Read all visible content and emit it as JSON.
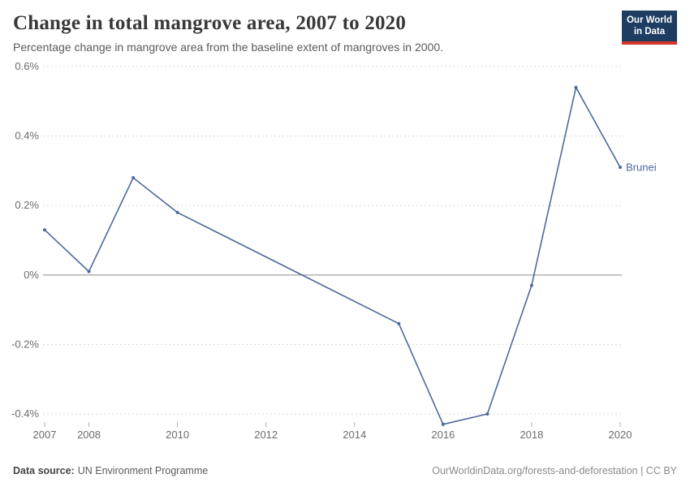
{
  "header": {
    "title": "Change in total mangrove area, 2007 to 2020",
    "subtitle": "Percentage change in mangrove area from the baseline extent of mangroves in 2000.",
    "logo": {
      "line1": "Our World",
      "line2": "in Data",
      "bg_color": "#1D3D63",
      "accent_color": "#D7342C"
    }
  },
  "chart_data": {
    "type": "line",
    "title": "Change in total mangrove area, 2007 to 2020",
    "xlabel": "",
    "ylabel": "",
    "x": [
      2007,
      2008,
      2009,
      2010,
      2015,
      2016,
      2017,
      2018,
      2019,
      2020
    ],
    "series": [
      {
        "name": "Brunei",
        "color": "#4C6A9C",
        "values": [
          0.13,
          0.01,
          0.28,
          0.18,
          -0.14,
          -0.43,
          -0.4,
          -0.03,
          0.54,
          0.31
        ],
        "note": "no data points between 2010 and 2015; line interpolates"
      }
    ],
    "axes": {
      "x_min": 2007,
      "x_max": 2020,
      "y_min": -0.4,
      "y_max": 0.6,
      "x_tick_labels": [
        "2007",
        "2008",
        "2010",
        "2012",
        "2014",
        "2016",
        "2018",
        "2020"
      ],
      "x_tick_values": [
        2007,
        2008,
        2010,
        2012,
        2014,
        2016,
        2018,
        2020
      ],
      "y_ticks": [
        {
          "value": 0.6,
          "label": "0.6%"
        },
        {
          "value": 0.4,
          "label": "0.4%"
        },
        {
          "value": 0.2,
          "label": "0.2%"
        },
        {
          "value": 0,
          "label": "0%"
        },
        {
          "value": -0.2,
          "label": "-0.2%"
        },
        {
          "value": -0.4,
          "label": "-0.4%"
        }
      ]
    },
    "grid": "horizontal dashed, solid line at zero",
    "legend_position": "end-of-line label",
    "end_label": "Brunei",
    "colors": {
      "grid": "#DADADA",
      "zero_line": "#A9A9A9",
      "axis_text": "#6b6b6b",
      "tick_mark": "#B0B0B0"
    }
  },
  "footer": {
    "source_label": "Data source:",
    "source_value": "UN Environment Programme",
    "credit": "OurWorldinData.org/forests-and-deforestation | CC BY"
  }
}
